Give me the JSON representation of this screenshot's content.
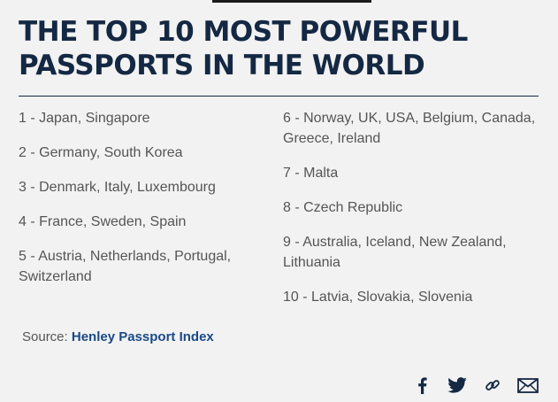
{
  "article": {
    "title": "THE TOP 10 MOST POWERFUL PASSPORTS IN THE WORLD",
    "rankings_left": [
      "1 - Japan, Singapore",
      "2 - Germany, South Korea",
      "3 - Denmark, Italy, Luxembourg",
      "4 - France, Sweden, Spain",
      "5 - Austria, Netherlands, Portugal, Switzerland"
    ],
    "rankings_right": [
      "6 - Norway, UK, USA,  Belgium, Canada, Greece, Ireland",
      "7 - Malta",
      "8 - Czech Republic",
      "9 - Australia, Iceland, New Zealand, Lithuania",
      "10 - Latvia, Slovakia, Slovenia"
    ],
    "source_label": "Source:",
    "source_link": "Henley Passport Index"
  },
  "share": {
    "icons": [
      "facebook-icon",
      "twitter-icon",
      "link-icon",
      "mail-icon"
    ]
  },
  "colors": {
    "background": "#f2f2f2",
    "heading": "#142843",
    "body_text": "#555555",
    "link": "#1a4a86"
  }
}
